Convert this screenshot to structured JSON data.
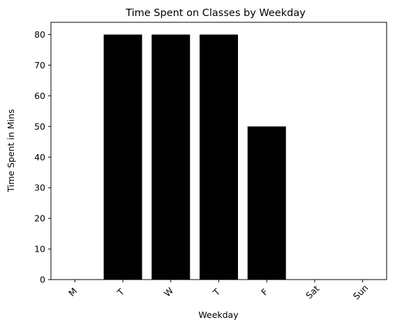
{
  "chart_data": {
    "type": "bar",
    "title": "Time Spent on Classes by Weekday",
    "xlabel": "Weekday",
    "ylabel": "Time Spent in Mins",
    "categories": [
      "M",
      "T",
      "W",
      "T",
      "F",
      "Sat",
      "Sun"
    ],
    "values": [
      0,
      80,
      80,
      80,
      50,
      0,
      0
    ],
    "ylim": [
      0,
      84
    ],
    "yticks": [
      0,
      10,
      20,
      30,
      40,
      50,
      60,
      70,
      80
    ],
    "bar_color": "#000000",
    "grid": false,
    "legend": "none",
    "x_tick_rotation": -45
  }
}
